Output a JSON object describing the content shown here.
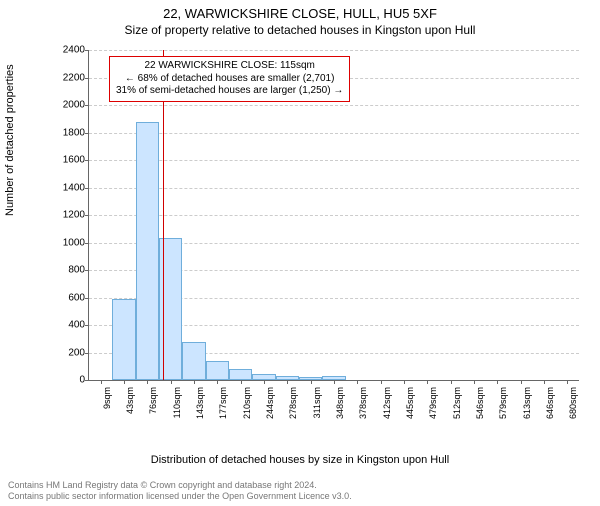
{
  "title": "22, WARWICKSHIRE CLOSE, HULL, HU5 5XF",
  "subtitle": "Size of property relative to detached houses in Kingston upon Hull",
  "ylabel": "Number of detached properties",
  "xlabel": "Distribution of detached houses by size in Kingston upon Hull",
  "chart": {
    "type": "histogram",
    "ylim": [
      0,
      2400
    ],
    "ytick_step": 200,
    "xticks": [
      "9sqm",
      "43sqm",
      "76sqm",
      "110sqm",
      "143sqm",
      "177sqm",
      "210sqm",
      "244sqm",
      "278sqm",
      "311sqm",
      "348sqm",
      "378sqm",
      "412sqm",
      "445sqm",
      "479sqm",
      "512sqm",
      "546sqm",
      "579sqm",
      "613sqm",
      "646sqm",
      "680sqm"
    ],
    "values": [
      0,
      590,
      1880,
      1030,
      280,
      140,
      80,
      45,
      30,
      25,
      30,
      0,
      0,
      0,
      0,
      0,
      0,
      0,
      0,
      0,
      0
    ],
    "bar_color": "#cce5ff",
    "bar_border_color": "#6faedb",
    "grid_color": "#cccccc",
    "axis_color": "#666666",
    "background_color": "#ffffff",
    "marker_color": "#d00000",
    "marker_position_index": 3.15
  },
  "annotation": {
    "line1": "22 WARWICKSHIRE CLOSE: 115sqm",
    "line2": "← 68% of detached houses are smaller (2,701)",
    "line3": "31% of semi-detached houses are larger (1,250) →"
  },
  "footer": {
    "line1": "Contains HM Land Registry data © Crown copyright and database right 2024.",
    "line2": "Contains public sector information licensed under the Open Government Licence v3.0."
  }
}
